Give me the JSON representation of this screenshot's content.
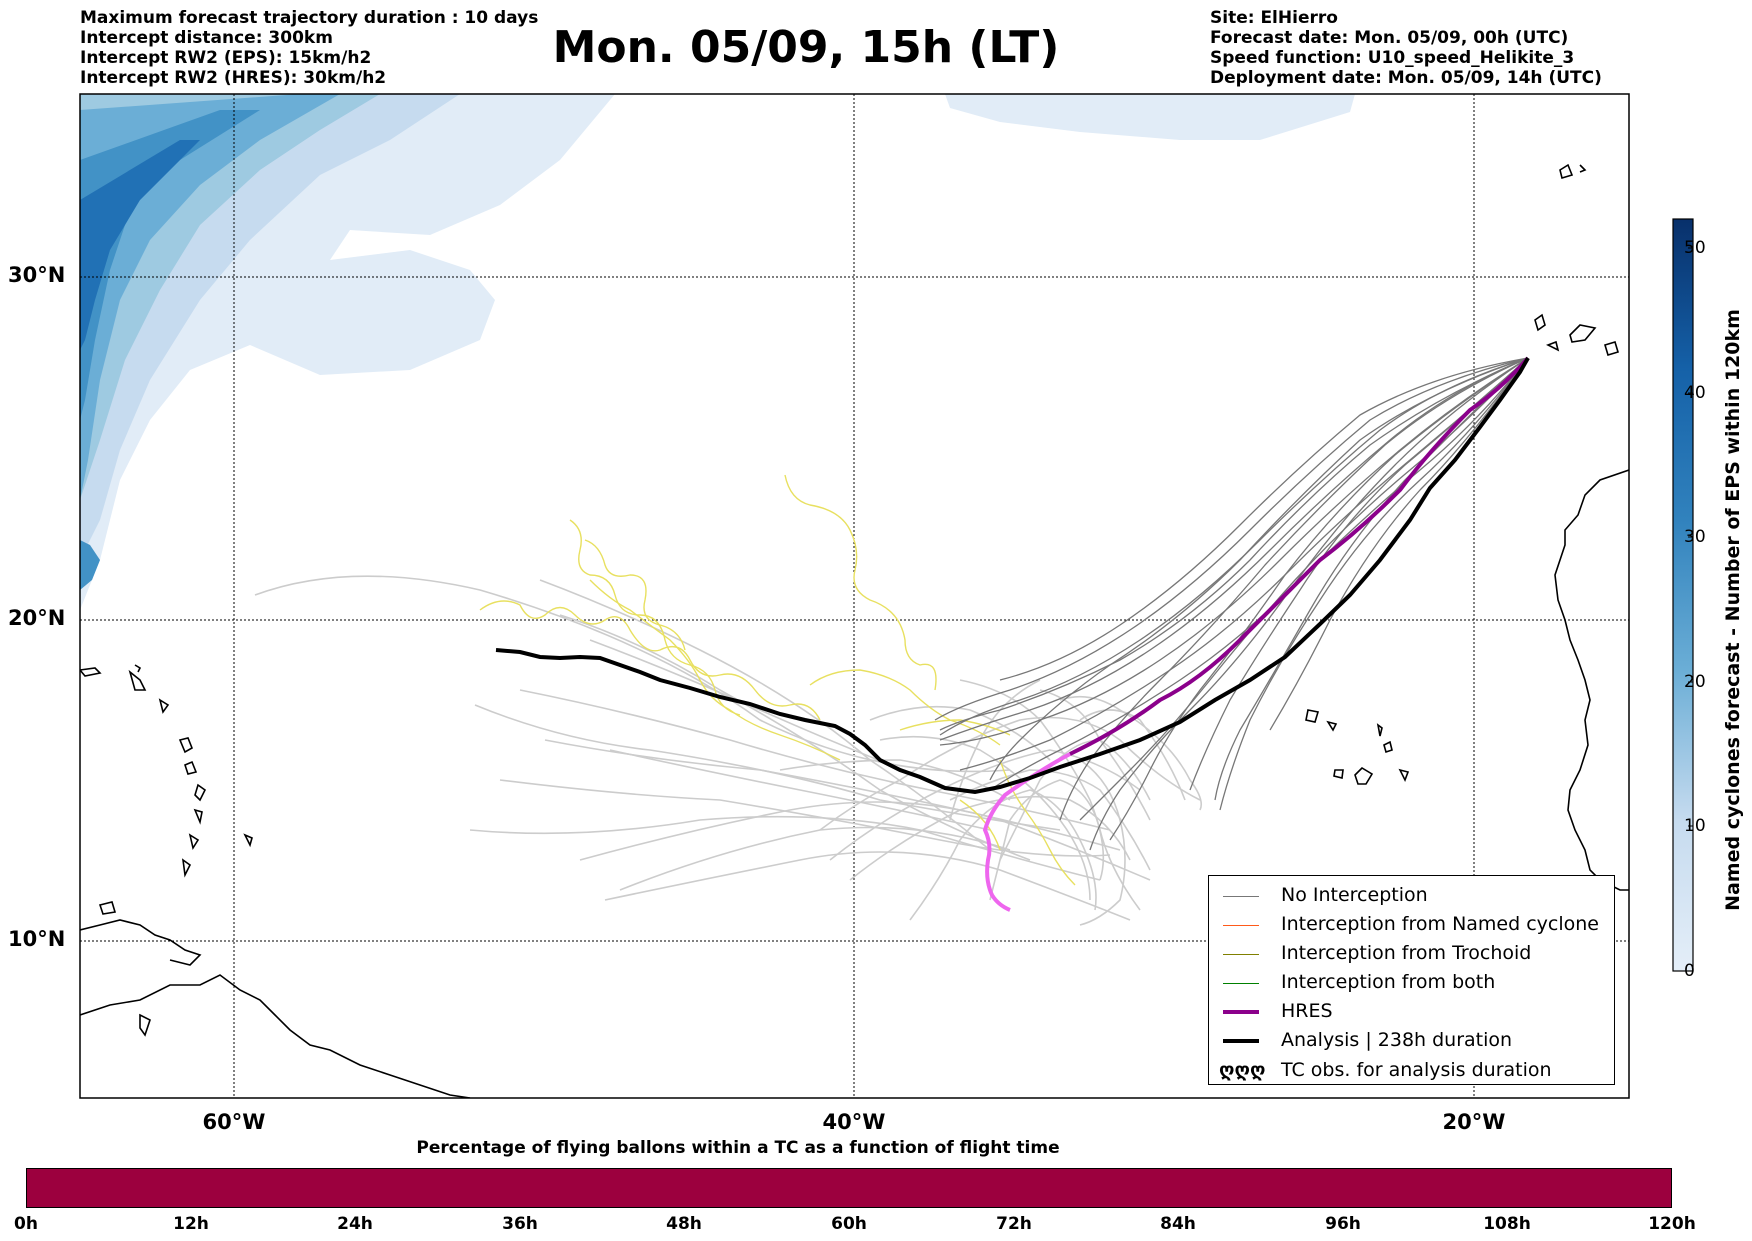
{
  "header": {
    "left_lines": [
      "Maximum forecast trajectory duration : 10 days",
      "Intercept distance: 300km",
      "Intercept RW2 (EPS):  15km/h2",
      "Intercept RW2 (HRES): 30km/h2"
    ],
    "title": "Mon. 05/09, 15h (LT)",
    "right_lines": [
      "Site: ElHierro",
      "Forecast date: Mon. 05/09, 00h (UTC)",
      "Speed function: U10_speed_Helikite_3",
      "Deployment date: Mon. 05/09, 14h (UTC)"
    ]
  },
  "map": {
    "lat_labels": [
      "30°N",
      "20°N",
      "10°N"
    ],
    "lon_labels": [
      "60°W",
      "40°W",
      "20°W"
    ],
    "colors": {
      "no_interception": "#777777",
      "interception_named": "#ff5a1a",
      "interception_trochoid": "#808000",
      "interception_both": "#008000",
      "hres": "#8b008b",
      "analysis": "#000000",
      "eps_spread": "#cccccc",
      "trochoid_yellow": "#e8e060",
      "hres_pink": "#ee66ee"
    }
  },
  "legend": {
    "items": [
      {
        "label": "No Interception",
        "color": "#777777"
      },
      {
        "label": "Interception from Named cyclone",
        "color": "#ff5a1a"
      },
      {
        "label": "Interception from Trochoid",
        "color": "#808000"
      },
      {
        "label": "Interception from both",
        "color": "#008000"
      },
      {
        "label": "HRES",
        "color": "#8b008b"
      },
      {
        "label": "Analysis | 238h duration",
        "color": "#000000"
      },
      {
        "label": "TC obs. for analysis duration",
        "symbol": "ღღღ"
      }
    ]
  },
  "colorbar": {
    "title": "Named cyclones forecast - Number of EPS within 120km",
    "ticks": [
      "50",
      "40",
      "30",
      "20",
      "10",
      "0"
    ],
    "range": [
      0,
      52
    ],
    "colors": [
      "#e4eef8",
      "#08306b"
    ]
  },
  "percentage_bar": {
    "title": "Percentage of flying ballons within a TC as a function of flight time",
    "color": "#9c003e",
    "ticks": [
      "0h",
      "12h",
      "24h",
      "36h",
      "48h",
      "60h",
      "72h",
      "84h",
      "96h",
      "108h",
      "120h"
    ]
  }
}
